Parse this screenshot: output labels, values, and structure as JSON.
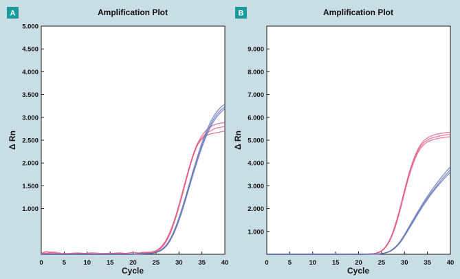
{
  "colors": {
    "red_series": "#e2567e",
    "blue_series": "#5b6fb3",
    "badge": "#1a9a9a"
  },
  "chart_data": [
    {
      "type": "line",
      "panel": "A",
      "title": "Amplification Plot",
      "xlabel": "Cycle",
      "ylabel": "Δ Rn",
      "xlim": [
        0,
        40
      ],
      "ylim": [
        0,
        5000
      ],
      "xticks": [
        0,
        5,
        10,
        15,
        20,
        25,
        30,
        35,
        40
      ],
      "xtick_labels": [
        "0",
        "5",
        "10",
        "15",
        "20",
        "25",
        "30",
        "35",
        "40"
      ],
      "yticks": [
        1000,
        1500,
        2000,
        2500,
        3000,
        3500,
        4000,
        4500,
        5000
      ],
      "ytick_labels": [
        "1.000",
        "1.500",
        "2.000",
        "2.500",
        "3.000",
        "3.500",
        "4.000",
        "4.500",
        "5.000"
      ],
      "grid": false,
      "series": [
        {
          "color": "red",
          "x": [
            0,
            1,
            2,
            3,
            4,
            5,
            8,
            11,
            14,
            17,
            20,
            22,
            24,
            25,
            26,
            27,
            28,
            29,
            30,
            31,
            32,
            33,
            34,
            35,
            36,
            37,
            38,
            39,
            40
          ],
          "y": [
            20,
            60,
            40,
            10,
            30,
            0,
            20,
            10,
            0,
            30,
            0,
            40,
            50,
            80,
            150,
            280,
            480,
            750,
            1080,
            1450,
            1820,
            2150,
            2400,
            2550,
            2650,
            2710,
            2760,
            2780,
            2800
          ]
        },
        {
          "color": "red",
          "x": [
            0,
            1,
            2,
            3,
            4,
            5,
            8,
            11,
            14,
            17,
            20,
            22,
            24,
            25,
            26,
            27,
            28,
            29,
            30,
            31,
            32,
            33,
            34,
            35,
            36,
            37,
            38,
            39,
            40
          ],
          "y": [
            40,
            10,
            50,
            30,
            0,
            20,
            0,
            30,
            10,
            0,
            40,
            20,
            30,
            60,
            120,
            240,
            430,
            700,
            1030,
            1400,
            1780,
            2120,
            2380,
            2520,
            2600,
            2640,
            2660,
            2680,
            2700
          ]
        },
        {
          "color": "red",
          "x": [
            0,
            1,
            2,
            3,
            4,
            5,
            8,
            11,
            14,
            17,
            20,
            22,
            24,
            25,
            26,
            27,
            28,
            29,
            30,
            31,
            32,
            33,
            34,
            35,
            36,
            37,
            38,
            39,
            40
          ],
          "y": [
            10,
            30,
            20,
            50,
            20,
            10,
            30,
            0,
            20,
            20,
            10,
            30,
            40,
            70,
            140,
            270,
            470,
            740,
            1060,
            1430,
            1800,
            2150,
            2420,
            2600,
            2720,
            2800,
            2850,
            2870,
            2890
          ]
        },
        {
          "color": "blue",
          "x": [
            0,
            5,
            10,
            15,
            20,
            22,
            24,
            25,
            26,
            27,
            28,
            29,
            30,
            31,
            32,
            33,
            34,
            35,
            36,
            37,
            38,
            39,
            40
          ],
          "y": [
            0,
            0,
            0,
            0,
            0,
            10,
            20,
            40,
            80,
            160,
            300,
            500,
            770,
            1080,
            1420,
            1760,
            2090,
            2390,
            2650,
            2860,
            3030,
            3150,
            3230
          ]
        },
        {
          "color": "blue",
          "x": [
            0,
            5,
            10,
            15,
            20,
            22,
            24,
            25,
            26,
            27,
            28,
            29,
            30,
            31,
            32,
            33,
            34,
            35,
            36,
            37,
            38,
            39,
            40
          ],
          "y": [
            0,
            0,
            0,
            0,
            0,
            10,
            20,
            45,
            90,
            175,
            320,
            530,
            800,
            1110,
            1450,
            1800,
            2130,
            2440,
            2700,
            2920,
            3090,
            3210,
            3290
          ]
        },
        {
          "color": "blue",
          "x": [
            0,
            5,
            10,
            15,
            20,
            22,
            24,
            25,
            26,
            27,
            28,
            29,
            30,
            31,
            32,
            33,
            34,
            35,
            36,
            37,
            38,
            39,
            40
          ],
          "y": [
            0,
            0,
            0,
            0,
            0,
            10,
            20,
            40,
            75,
            150,
            285,
            480,
            740,
            1040,
            1380,
            1720,
            2040,
            2340,
            2600,
            2810,
            2980,
            3100,
            3190
          ]
        }
      ]
    },
    {
      "type": "line",
      "panel": "B",
      "title": "Amplification Plot",
      "xlabel": "Cycle",
      "ylabel": "Δ Rn",
      "xlim": [
        0,
        40
      ],
      "ylim": [
        0,
        10000
      ],
      "xticks": [
        0,
        5,
        10,
        15,
        20,
        25,
        30,
        35,
        40
      ],
      "xtick_labels": [
        "0",
        "5",
        "10",
        "15",
        "20",
        "25",
        "30",
        "35",
        "40"
      ],
      "yticks": [
        1000,
        2000,
        3000,
        4000,
        5000,
        6000,
        7000,
        8000,
        9000
      ],
      "ytick_labels": [
        "1.000",
        "2.000",
        "3.000",
        "4.000",
        "5.000",
        "6.000",
        "7.000",
        "8.000",
        "9.000"
      ],
      "grid": false,
      "series": [
        {
          "color": "red",
          "x": [
            0,
            5,
            10,
            15,
            20,
            23,
            24,
            25,
            26,
            27,
            28,
            29,
            30,
            31,
            32,
            33,
            34,
            35,
            36,
            37,
            38,
            39,
            40
          ],
          "y": [
            0,
            0,
            0,
            0,
            0,
            20,
            60,
            150,
            350,
            700,
            1250,
            1950,
            2750,
            3500,
            4100,
            4550,
            4850,
            5000,
            5100,
            5150,
            5200,
            5230,
            5250
          ]
        },
        {
          "color": "red",
          "x": [
            0,
            5,
            10,
            15,
            20,
            23,
            24,
            25,
            26,
            27,
            28,
            29,
            30,
            31,
            32,
            33,
            34,
            35,
            36,
            37,
            38,
            39,
            40
          ],
          "y": [
            0,
            0,
            0,
            0,
            0,
            20,
            55,
            140,
            330,
            670,
            1200,
            1900,
            2680,
            3420,
            4020,
            4470,
            4760,
            4920,
            5010,
            5060,
            5100,
            5130,
            5150
          ]
        },
        {
          "color": "red",
          "x": [
            0,
            5,
            10,
            15,
            20,
            23,
            24,
            25,
            26,
            27,
            28,
            29,
            30,
            31,
            32,
            33,
            34,
            35,
            36,
            37,
            38,
            39,
            40
          ],
          "y": [
            0,
            0,
            0,
            0,
            0,
            20,
            65,
            160,
            370,
            730,
            1300,
            2000,
            2800,
            3560,
            4170,
            4630,
            4930,
            5100,
            5200,
            5260,
            5300,
            5330,
            5350
          ]
        },
        {
          "color": "blue",
          "x": [
            0,
            5,
            10,
            15,
            20,
            24,
            25,
            26,
            27,
            28,
            29,
            30,
            31,
            32,
            33,
            34,
            35,
            36,
            37,
            38,
            39,
            40
          ],
          "y": [
            0,
            0,
            0,
            0,
            0,
            10,
            30,
            70,
            150,
            300,
            520,
            820,
            1160,
            1500,
            1840,
            2160,
            2460,
            2740,
            3000,
            3250,
            3480,
            3700
          ]
        },
        {
          "color": "blue",
          "x": [
            0,
            5,
            10,
            15,
            20,
            24,
            25,
            26,
            27,
            28,
            29,
            30,
            31,
            32,
            33,
            34,
            35,
            36,
            37,
            38,
            39,
            40
          ],
          "y": [
            0,
            0,
            0,
            0,
            0,
            10,
            32,
            75,
            160,
            320,
            550,
            860,
            1210,
            1560,
            1900,
            2230,
            2540,
            2830,
            3100,
            3360,
            3600,
            3830
          ]
        },
        {
          "color": "blue",
          "x": [
            0,
            5,
            10,
            15,
            20,
            24,
            25,
            26,
            27,
            28,
            29,
            30,
            31,
            32,
            33,
            34,
            35,
            36,
            37,
            38,
            39,
            40
          ],
          "y": [
            0,
            0,
            0,
            0,
            0,
            10,
            28,
            65,
            140,
            285,
            495,
            790,
            1120,
            1450,
            1780,
            2100,
            2400,
            2680,
            2930,
            3170,
            3390,
            3600
          ]
        }
      ]
    }
  ]
}
